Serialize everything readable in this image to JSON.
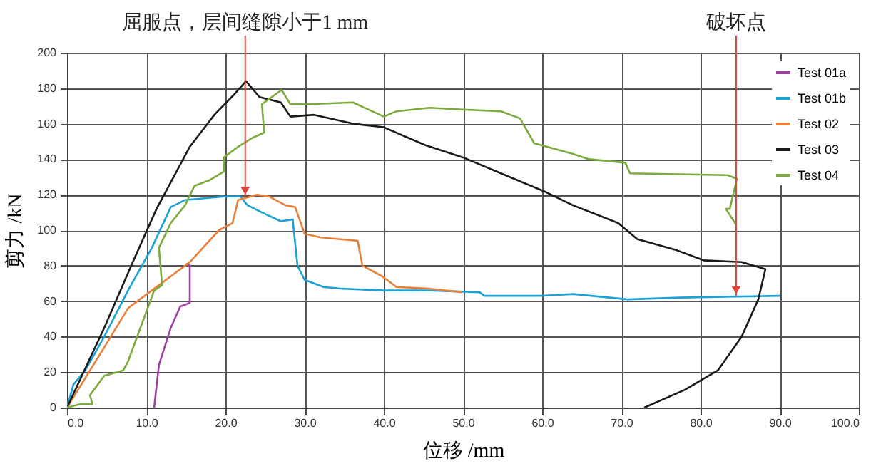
{
  "chart_data": {
    "type": "line",
    "xlabel": "位移 /mm",
    "ylabel": "剪力 /kN",
    "xlim": [
      0,
      100
    ],
    "xticks": [
      {
        "value": 0,
        "label": "0.0"
      },
      {
        "value": 10,
        "label": "10.0"
      },
      {
        "value": 20,
        "label": "20.0"
      },
      {
        "value": 30,
        "label": "30.0"
      },
      {
        "value": 40,
        "label": "40.0"
      },
      {
        "value": 50,
        "label": "50.0"
      },
      {
        "value": 60,
        "label": "60.0"
      },
      {
        "value": 70,
        "label": "70.0"
      },
      {
        "value": 80,
        "label": "80.0"
      },
      {
        "value": 90,
        "label": "90.0"
      },
      {
        "value": 100,
        "label": "100.0"
      }
    ],
    "ylim": [
      0,
      200
    ],
    "yticks": [
      0,
      20,
      40,
      60,
      80,
      100,
      120,
      140,
      160,
      180,
      200
    ],
    "grid": true,
    "legend": "top right",
    "annotations": [
      {
        "text": "屈服点，层间缝隙小于1 mm",
        "x": 22.5,
        "y": 119
      },
      {
        "text": "破坏点",
        "x": 84.5,
        "y": 63
      }
    ],
    "series": [
      {
        "name": "Test 01a",
        "color": "#a040a0",
        "x": [
          11,
          11.6,
          13.1,
          14.3,
          15.5,
          15.5,
          15
        ],
        "values": [
          0,
          24,
          45,
          57,
          59,
          80,
          81
        ]
      },
      {
        "name": "Test 01b",
        "color": "#1ba1d6",
        "x": [
          0,
          0.8,
          2.3,
          4.7,
          7.7,
          10.7,
          13.1,
          14.9,
          19.8,
          21.9,
          22.8,
          24.6,
          27,
          28.5,
          29.1,
          30,
          32.4,
          34.8,
          40,
          45.8,
          52.1,
          52.7,
          59.9,
          63.9,
          70.8,
          77.4,
          90
        ],
        "values": [
          0,
          13,
          21,
          40,
          66,
          90,
          113,
          117,
          119,
          119,
          114,
          110,
          105,
          106,
          80,
          72,
          68,
          67,
          66,
          66,
          65,
          63,
          63,
          64,
          61,
          62,
          63
        ]
      },
      {
        "name": "Test 02",
        "color": "#e8803a",
        "x": [
          0,
          4.7,
          7.7,
          10.7,
          15.5,
          19.2,
          20.9,
          21.6,
          24,
          25.5,
          27.6,
          28.8,
          30,
          31.9,
          36.7,
          37.3,
          39.8,
          41.6,
          45.8,
          49.9
        ],
        "values": [
          0,
          34,
          56,
          66,
          82,
          100,
          104,
          117,
          120,
          119,
          114,
          113,
          98,
          96,
          94,
          80,
          74,
          68,
          67,
          65
        ]
      },
      {
        "name": "Test 03",
        "color": "#1a1a1a",
        "x": [
          0,
          4.7,
          8.3,
          11.3,
          15.5,
          18.6,
          21,
          22.6,
          24.3,
          27,
          28.2,
          31.2,
          36.1,
          40,
          45.2,
          50,
          54.8,
          60.2,
          63.9,
          69.6,
          72,
          76.8,
          80.4,
          85.2,
          88.2,
          87.3,
          85.2,
          82.2,
          78,
          72.9
        ],
        "values": [
          0,
          45,
          82,
          112,
          147,
          165,
          176,
          184,
          175,
          172,
          164,
          165,
          160,
          158,
          148,
          141,
          132,
          122,
          114,
          104,
          95,
          89,
          83,
          82,
          78,
          61,
          40,
          21,
          10,
          0
        ]
      },
      {
        "name": "Test 04",
        "color": "#7aab3c",
        "x": [
          0,
          1.7,
          3.2,
          2.9,
          4.7,
          7.1,
          7.7,
          11,
          12,
          11.6,
          13.1,
          14.9,
          16.1,
          17.9,
          19.8,
          19.8,
          21.6,
          23.4,
          24.9,
          24.6,
          27.1,
          28.2,
          30.6,
          36.1,
          40,
          41.6,
          45.8,
          49.9,
          54.8,
          57.2,
          59,
          63.9,
          65.9,
          70.5,
          71.1,
          83.4,
          84.6,
          83.7,
          83.2,
          84.5
        ],
        "values": [
          0,
          2,
          2,
          7,
          18,
          21,
          26,
          66,
          69,
          90,
          104,
          114,
          125,
          128,
          133,
          141,
          147,
          152,
          155,
          171,
          179,
          171,
          171,
          172,
          164,
          167,
          169,
          168,
          167,
          163,
          149,
          143,
          140,
          138,
          132,
          131,
          129,
          112,
          112,
          103
        ]
      }
    ]
  }
}
